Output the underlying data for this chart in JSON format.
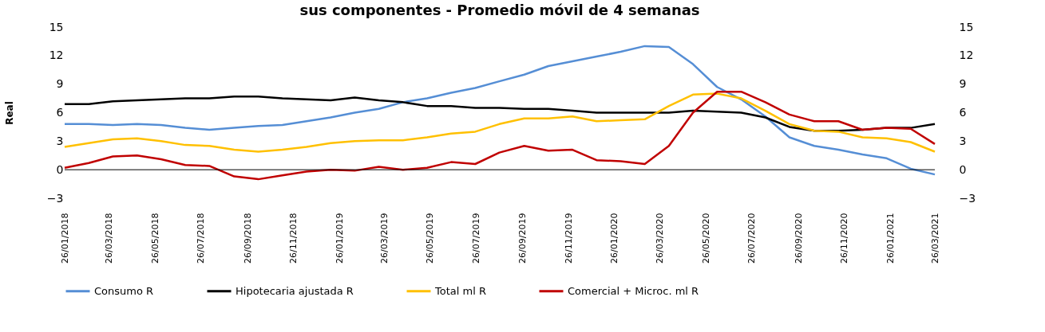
{
  "chart_data": {
    "type": "line",
    "title": "sus componentes - Promedio móvil de 4 semanas",
    "ylabel": "Real",
    "x": [
      "2018-01-26",
      "2018-02-27",
      "2018-03-31",
      "2018-05-02",
      "2018-06-03",
      "2018-07-05",
      "2018-08-06",
      "2018-09-08",
      "2018-10-10",
      "2018-11-11",
      "2018-12-13",
      "2019-01-14",
      "2019-02-15",
      "2019-03-19",
      "2019-04-20",
      "2019-05-22",
      "2019-06-23",
      "2019-07-25",
      "2019-08-26",
      "2019-09-28",
      "2019-10-30",
      "2019-12-01",
      "2020-01-02",
      "2020-02-03",
      "2020-03-06",
      "2020-04-07",
      "2020-05-09",
      "2020-06-10",
      "2020-07-12",
      "2020-08-13",
      "2020-09-14",
      "2020-10-17",
      "2020-11-18",
      "2020-12-20",
      "2021-01-21",
      "2021-02-22",
      "2021-03-26"
    ],
    "series": [
      {
        "name": "Consumo R",
        "color": "#558ed5",
        "values": [
          4.8,
          4.8,
          4.7,
          4.8,
          4.7,
          4.4,
          4.2,
          4.4,
          4.6,
          4.7,
          5.1,
          5.5,
          6.0,
          6.4,
          7.1,
          7.5,
          8.1,
          8.6,
          9.3,
          10.0,
          10.9,
          11.4,
          11.9,
          12.4,
          13.0,
          12.9,
          11.1,
          8.7,
          7.4,
          5.6,
          3.4,
          2.5,
          2.1,
          1.6,
          1.2,
          0.1,
          -0.5
        ]
      },
      {
        "name": "Hipotecaria ajustada R",
        "color": "#000000",
        "values": [
          6.9,
          6.9,
          7.2,
          7.3,
          7.4,
          7.5,
          7.5,
          7.7,
          7.7,
          7.5,
          7.4,
          7.3,
          7.6,
          7.3,
          7.1,
          6.7,
          6.7,
          6.5,
          6.5,
          6.4,
          6.4,
          6.2,
          6.0,
          6.0,
          6.0,
          6.0,
          6.2,
          6.1,
          6.0,
          5.5,
          4.5,
          4.1,
          4.1,
          4.2,
          4.4,
          4.4,
          4.8
        ]
      },
      {
        "name": "Total ml R",
        "color": "#ffc000",
        "values": [
          2.4,
          2.8,
          3.2,
          3.3,
          3.0,
          2.6,
          2.5,
          2.1,
          1.9,
          2.1,
          2.4,
          2.8,
          3.0,
          3.1,
          3.1,
          3.4,
          3.8,
          4.0,
          4.8,
          5.4,
          5.4,
          5.6,
          5.1,
          5.2,
          5.3,
          6.7,
          7.9,
          8.0,
          7.5,
          6.2,
          4.8,
          4.1,
          4.0,
          3.4,
          3.3,
          2.9,
          1.9
        ]
      },
      {
        "name": "Comercial + Microc. ml R",
        "color": "#c00000",
        "values": [
          0.2,
          0.7,
          1.4,
          1.5,
          1.1,
          0.5,
          0.4,
          -0.7,
          -1.0,
          -0.6,
          -0.2,
          0.0,
          -0.1,
          0.3,
          0.0,
          0.2,
          0.8,
          0.6,
          1.8,
          2.5,
          2.0,
          2.1,
          1.0,
          0.9,
          0.6,
          2.5,
          6.0,
          8.2,
          8.2,
          7.1,
          5.8,
          5.1,
          5.1,
          4.2,
          4.4,
          4.3,
          2.7
        ]
      }
    ],
    "xlim": [
      "2018-01-26",
      "2021-03-26"
    ],
    "xticks": [
      {
        "value": "2018-01-26",
        "label": "26/01/2018"
      },
      {
        "value": "2018-03-26",
        "label": "26/03/2018"
      },
      {
        "value": "2018-05-26",
        "label": "26/05/2018"
      },
      {
        "value": "2018-07-26",
        "label": "26/07/2018"
      },
      {
        "value": "2018-09-26",
        "label": "26/09/2018"
      },
      {
        "value": "2018-11-26",
        "label": "26/11/2018"
      },
      {
        "value": "2019-01-26",
        "label": "26/01/2019"
      },
      {
        "value": "2019-03-26",
        "label": "26/03/2019"
      },
      {
        "value": "2019-05-26",
        "label": "26/05/2019"
      },
      {
        "value": "2019-07-26",
        "label": "26/07/2019"
      },
      {
        "value": "2019-09-26",
        "label": "26/09/2019"
      },
      {
        "value": "2019-11-26",
        "label": "26/11/2019"
      },
      {
        "value": "2020-01-26",
        "label": "26/01/2020"
      },
      {
        "value": "2020-03-26",
        "label": "26/03/2020"
      },
      {
        "value": "2020-05-26",
        "label": "26/05/2020"
      },
      {
        "value": "2020-07-26",
        "label": "26/07/2020"
      },
      {
        "value": "2020-09-26",
        "label": "26/09/2020"
      },
      {
        "value": "2020-11-26",
        "label": "26/11/2020"
      },
      {
        "value": "2021-01-26",
        "label": "26/01/2021"
      },
      {
        "value": "2021-03-26",
        "label": "26/03/2021"
      }
    ],
    "ylim": [
      -3,
      15
    ],
    "yticks": [
      -3,
      0,
      3,
      6,
      9,
      12,
      15
    ],
    "y2lim": [
      -3,
      15
    ],
    "y2ticks": [
      -3,
      0,
      3,
      6,
      9,
      12,
      15
    ],
    "ref_lines": [
      {
        "axis": "y",
        "value": 0,
        "color": "#000000"
      }
    ],
    "grid": false,
    "legend": "bottom",
    "marker": "none",
    "line_style": "solid"
  }
}
